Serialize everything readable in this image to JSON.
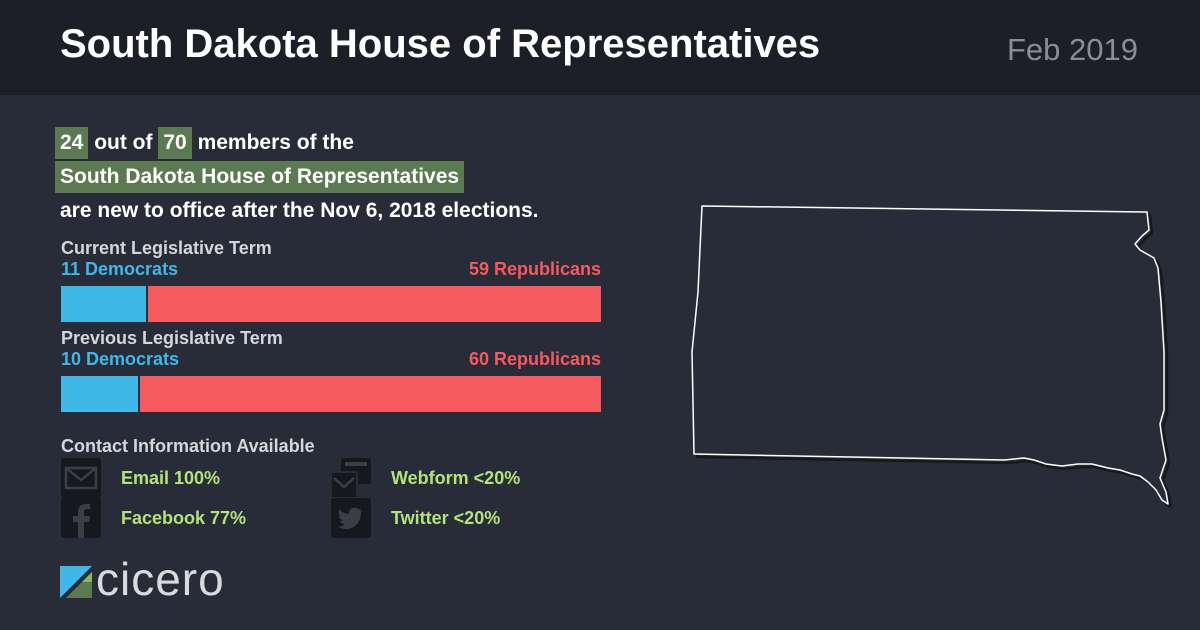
{
  "header": {
    "title": "South Dakota House of Representatives",
    "date": "Feb 2019"
  },
  "summary": {
    "new_count": "24",
    "out_of": "out of",
    "total": "70",
    "members_of_the": "members of the",
    "chamber": "South Dakota House of Representatives",
    "tail": "are new to office after the Nov 6, 2018 elections."
  },
  "current_term": {
    "label": "Current Legislative Term",
    "democrats_label": "11 Democrats",
    "republicans_label": "59 Republicans",
    "democrats": 11,
    "republicans": 59
  },
  "previous_term": {
    "label": "Previous Legislative Term",
    "democrats_label": "10 Democrats",
    "republicans_label": "60 Republicans",
    "democrats": 10,
    "republicans": 60
  },
  "contact": {
    "title": "Contact Information Available",
    "items": [
      {
        "icon": "email-icon",
        "label": "Email 100%"
      },
      {
        "icon": "webform-icon",
        "label": "Webform <20%"
      },
      {
        "icon": "facebook-icon",
        "label": "Facebook 77%"
      },
      {
        "icon": "twitter-icon",
        "label": "Twitter <20%"
      }
    ]
  },
  "logo": {
    "text": "cicero"
  },
  "colors": {
    "democrat": "#3fb8e8",
    "republican": "#f55a5f",
    "highlight": "#5b7a52",
    "contact_text": "#b4e37a"
  }
}
